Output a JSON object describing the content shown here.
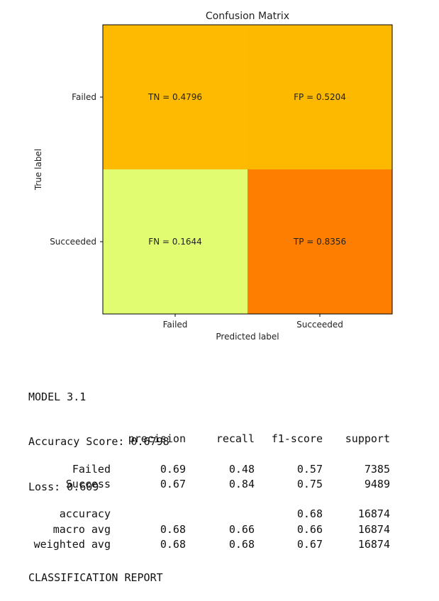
{
  "chart_data": {
    "type": "heatmap",
    "title": "Confusion Matrix",
    "xlabel": "Predicted label",
    "ylabel": "True label",
    "x_categories": [
      "Failed",
      "Succeeded"
    ],
    "y_categories": [
      "Failed",
      "Succeeded"
    ],
    "cells": [
      {
        "row": 0,
        "col": 0,
        "label": "TN = 0.4796",
        "value": 0.4796,
        "color": "#fdba00"
      },
      {
        "row": 0,
        "col": 1,
        "label": "FP = 0.5204",
        "value": 0.5204,
        "color": "#fdb800"
      },
      {
        "row": 1,
        "col": 0,
        "label": "FN = 0.1644",
        "value": 0.1644,
        "color": "#e2fc72"
      },
      {
        "row": 1,
        "col": 1,
        "label": "TP = 0.8356",
        "value": 0.8356,
        "color": "#fd7e00"
      }
    ],
    "colormap": "Wistia"
  },
  "report": {
    "model": "MODEL 3.1",
    "accuracy_score": "Accuracy Score: 0.6798",
    "loss": "Loss: 0.609",
    "heading": "CLASSIFICATION REPORT",
    "columns": [
      "",
      "precision",
      "recall",
      "f1-score",
      "support"
    ],
    "rows": [
      [
        "Failed",
        "0.69",
        "0.48",
        "0.57",
        "7385"
      ],
      [
        "Success",
        "0.67",
        "0.84",
        "0.75",
        "9489"
      ],
      [],
      [
        "accuracy",
        "",
        "",
        "0.68",
        "16874"
      ],
      [
        "macro avg",
        "0.68",
        "0.66",
        "0.66",
        "16874"
      ],
      [
        "weighted avg",
        "0.68",
        "0.68",
        "0.67",
        "16874"
      ]
    ]
  }
}
